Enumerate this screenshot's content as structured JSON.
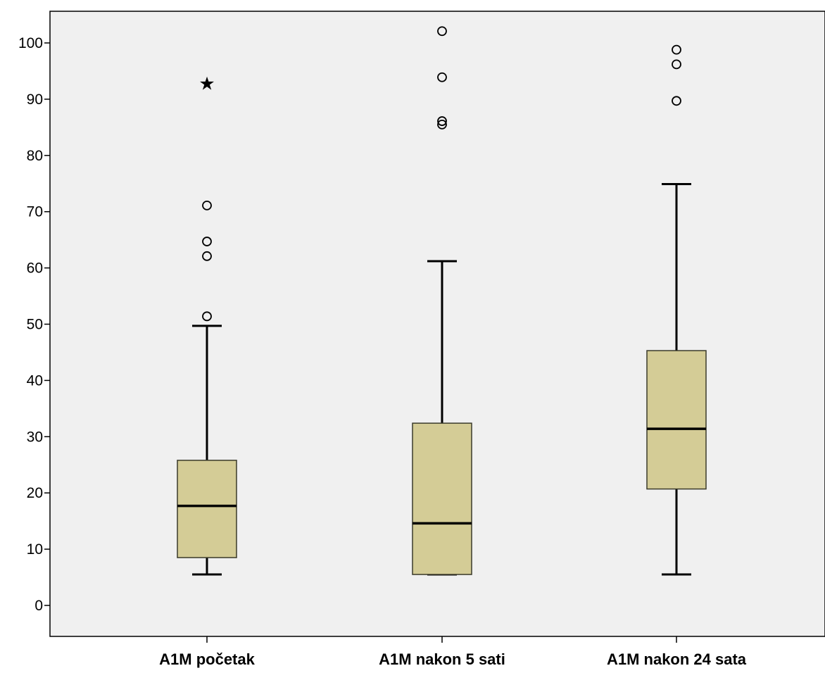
{
  "chart_data": {
    "type": "boxplot",
    "title": "",
    "xlabel": "",
    "ylabel": "",
    "ylim": [
      -5,
      105
    ],
    "y_ticks": [
      0,
      10,
      20,
      30,
      40,
      50,
      60,
      70,
      80,
      90,
      100
    ],
    "grid": false,
    "colors": {
      "box_fill": "#d4cc96",
      "plot_bg": "#f0f0f0",
      "stroke": "#000000"
    },
    "categories": [
      "A1M početak",
      "A1M nakon 5 sati",
      "A1M nakon 24 sata"
    ],
    "boxes": [
      {
        "category": "A1M početak",
        "whisker_low": 5.5,
        "q1": 8.5,
        "median": 17.7,
        "q3": 25.8,
        "whisker_high": 49.7,
        "outliers": [
          51.4,
          62.1,
          64.7,
          71.1
        ],
        "extremes": [
          92.9
        ]
      },
      {
        "category": "A1M nakon 5 sati",
        "whisker_low": 5.5,
        "q1": 5.5,
        "median": 14.6,
        "q3": 32.4,
        "whisker_high": 61.2,
        "outliers": [
          85.5,
          86.1,
          93.9,
          102.1
        ],
        "extremes": []
      },
      {
        "category": "A1M nakon 24 sata",
        "whisker_low": 5.5,
        "q1": 20.7,
        "median": 31.4,
        "q3": 45.3,
        "whisker_high": 74.9,
        "outliers": [
          89.7,
          96.2,
          98.8
        ],
        "extremes": []
      }
    ]
  }
}
